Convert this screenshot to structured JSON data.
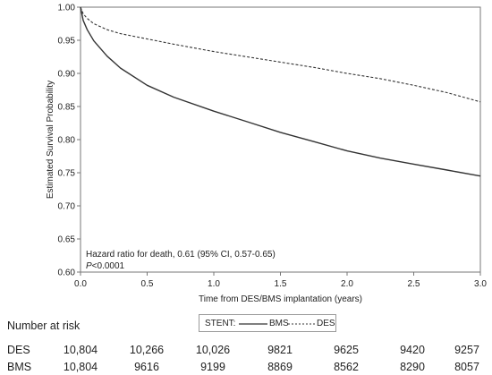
{
  "chart_data": {
    "type": "line",
    "title": "",
    "xlabel": "Time from DES/BMS implantation (years)",
    "ylabel": "Estimated Survival Probability",
    "xlim": [
      0,
      3.0
    ],
    "ylim": [
      0.6,
      1.0
    ],
    "x_ticks": [
      "0.0",
      "0.5",
      "1.0",
      "1.5",
      "2.0",
      "2.5",
      "3.0"
    ],
    "y_ticks": [
      "0.60",
      "0.65",
      "0.70",
      "0.75",
      "0.80",
      "0.85",
      "0.90",
      "0.95",
      "1.00"
    ],
    "series": [
      {
        "name": "BMS",
        "style": "solid",
        "x": [
          0,
          0.02,
          0.05,
          0.1,
          0.2,
          0.3,
          0.5,
          0.7,
          1.0,
          1.25,
          1.5,
          1.75,
          2.0,
          2.25,
          2.5,
          2.75,
          3.0
        ],
        "y": [
          1.0,
          0.98,
          0.966,
          0.949,
          0.926,
          0.908,
          0.882,
          0.864,
          0.843,
          0.827,
          0.811,
          0.797,
          0.783,
          0.772,
          0.763,
          0.754,
          0.745
        ]
      },
      {
        "name": "DES",
        "style": "dashed",
        "x": [
          0,
          0.02,
          0.05,
          0.1,
          0.2,
          0.3,
          0.5,
          0.7,
          1.0,
          1.25,
          1.5,
          1.75,
          2.0,
          2.25,
          2.5,
          2.75,
          3.0
        ],
        "y": [
          1.0,
          0.99,
          0.983,
          0.975,
          0.966,
          0.96,
          0.952,
          0.944,
          0.933,
          0.925,
          0.917,
          0.909,
          0.9,
          0.892,
          0.882,
          0.871,
          0.857
        ]
      }
    ],
    "annotation": {
      "line1": "Hazard ratio for death, 0.61 (95% CI, 0.57-0.65)",
      "line2": "P<0.0001"
    }
  },
  "legend": {
    "title": "STENT:",
    "bms": "BMS",
    "des": "DES"
  },
  "risk_table": {
    "title": "Number at risk",
    "rows": [
      {
        "label": "DES",
        "values": [
          "10,804",
          "10,266",
          "10,026",
          "9821",
          "9625",
          "9420",
          "9257"
        ]
      },
      {
        "label": "BMS",
        "values": [
          "10,804",
          "9616",
          "9199",
          "8869",
          "8562",
          "8290",
          "8057"
        ]
      }
    ]
  }
}
